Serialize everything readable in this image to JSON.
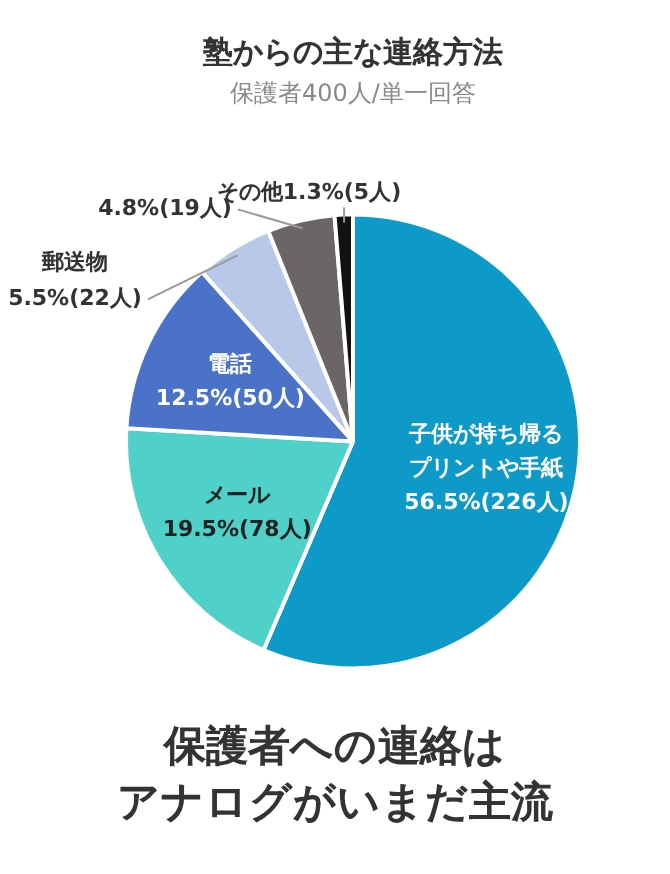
{
  "chart_data": {
    "type": "pie",
    "title": "塾からの主な連絡方法",
    "subtitle": "保護者400人/単一回答",
    "categories": [
      "子供が持ち帰るプリントや手紙",
      "メール",
      "電話",
      "郵送物",
      null,
      "その他"
    ],
    "values": [
      56.5,
      19.5,
      12.5,
      5.5,
      4.8,
      1.3
    ],
    "value_labels": [
      "56.5%(226人)",
      "19.5%(78人)",
      "12.5%(50人)",
      "5.5%(22人)",
      "4.8%(19人)",
      "1.3%(5人)"
    ],
    "colors": [
      "#0e9ac8",
      "#4fd0c8",
      "#4a72c8",
      "#b8c8e8",
      "#6b6565",
      "#111111"
    ],
    "legend": false,
    "annotations": [
      "保護者への連絡は",
      "アナログがいまだ主流"
    ]
  }
}
